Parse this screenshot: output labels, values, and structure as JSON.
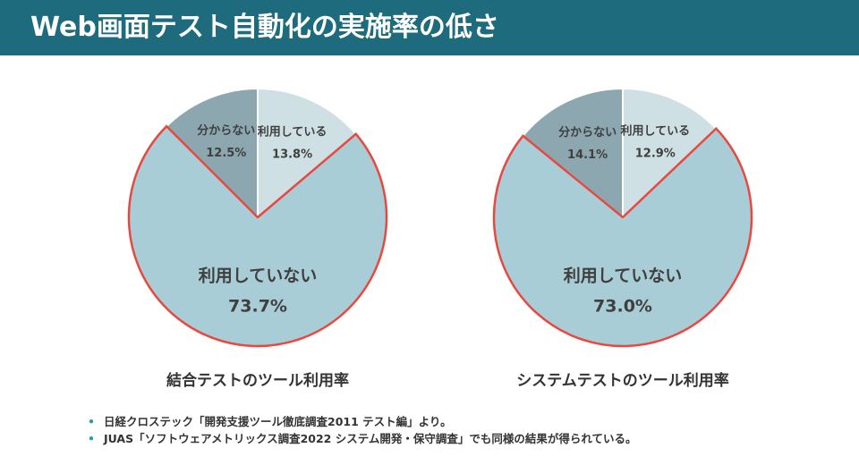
{
  "header": {
    "title": "Web画面テスト自動化の実施率の低さ"
  },
  "colors": {
    "header_bg": "#1f6b7e",
    "using": "#cfe0e5",
    "unknown": "#8da7b0",
    "not_using": "#a9cdd6",
    "highlight_border": "#e8483f"
  },
  "chart_data": [
    {
      "type": "pie",
      "title": "結合テストのツール利用率",
      "slices": [
        {
          "label": "利用している",
          "value": 13.8,
          "value_text": "13.8%",
          "color": "#cfe0e5"
        },
        {
          "label": "利用していない",
          "value": 73.7,
          "value_text": "73.7%",
          "color": "#a9cdd6",
          "highlighted": true
        },
        {
          "label": "分からない",
          "value": 12.5,
          "value_text": "12.5%",
          "color": "#8da7b0"
        }
      ]
    },
    {
      "type": "pie",
      "title": "システムテストのツール利用率",
      "slices": [
        {
          "label": "利用している",
          "value": 12.9,
          "value_text": "12.9%",
          "color": "#cfe0e5"
        },
        {
          "label": "利用していない",
          "value": 73.0,
          "value_text": "73.0%",
          "color": "#a9cdd6",
          "highlighted": true
        },
        {
          "label": "分からない",
          "value": 14.1,
          "value_text": "14.1%",
          "color": "#8da7b0"
        }
      ]
    }
  ],
  "notes": [
    {
      "bullet": "•",
      "text": "日経クロステック「開発支援ツール徹底調査2011 テスト編」より。"
    },
    {
      "bullet": "•",
      "text": "JUAS「ソフトウェアメトリックス調査2022 システム開発・保守調査」でも同様の結果が得られている。"
    }
  ]
}
